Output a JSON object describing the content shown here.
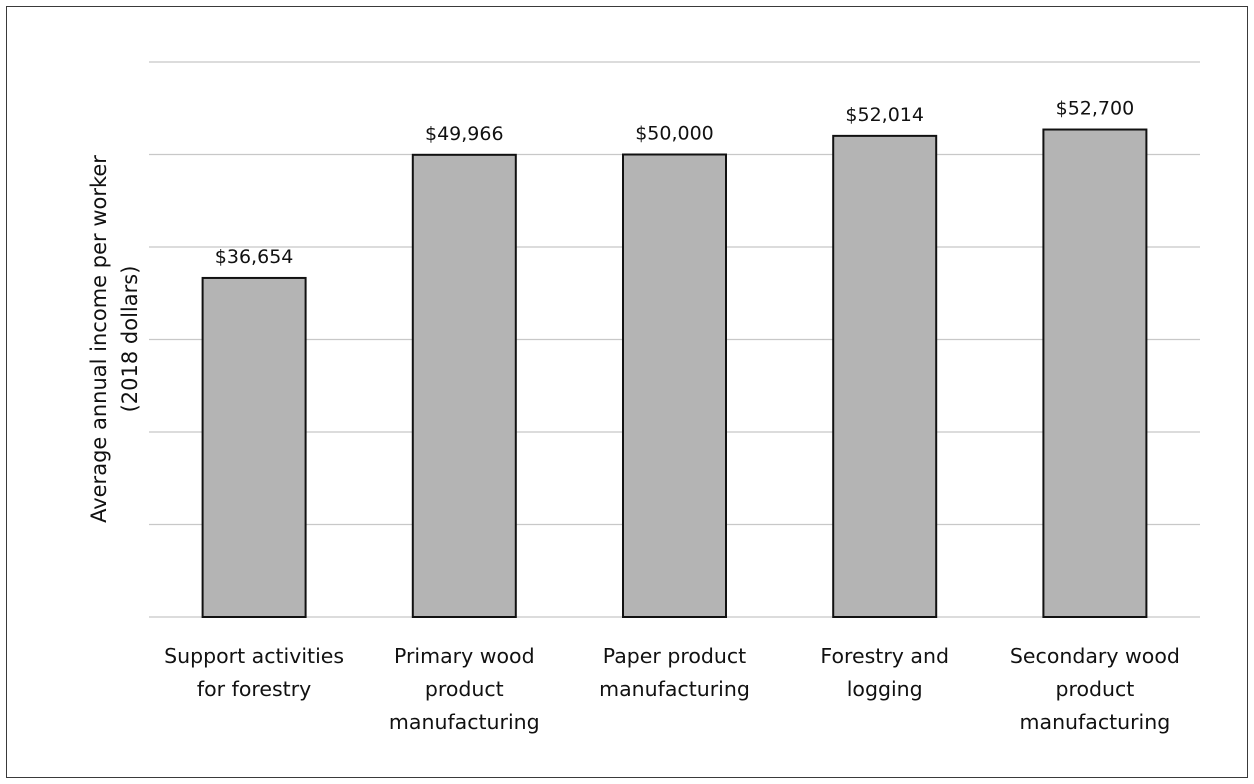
{
  "chart_data": {
    "type": "bar",
    "title": "",
    "xlabel": "",
    "ylabel": "Average annual income per worker",
    "ylabel_line2": "(2018 dollars)",
    "categories": [
      "Support activities for forestry",
      "Primary wood product manufacturing",
      "Paper product manufacturing",
      "Forestry and logging",
      "Secondary wood product manufacturing"
    ],
    "category_lines": [
      [
        "Support activities",
        "for forestry"
      ],
      [
        "Primary wood",
        "product",
        "manufacturing"
      ],
      [
        "Paper product",
        "manufacturing"
      ],
      [
        "Forestry and",
        "logging"
      ],
      [
        "Secondary wood",
        "product",
        "manufacturing"
      ]
    ],
    "values": [
      36654,
      49966,
      50000,
      52014,
      52700
    ],
    "data_labels": [
      "$36,654",
      "$49,966",
      "$50,000",
      "$52,014",
      "$52,700"
    ],
    "ylim": [
      0,
      60000
    ],
    "gridline_interval": 10000,
    "y_tick_labels_shown": false,
    "grid": true,
    "bar_color": "#b4b4b4",
    "bar_edge_color": "#111111",
    "legend": "none"
  }
}
